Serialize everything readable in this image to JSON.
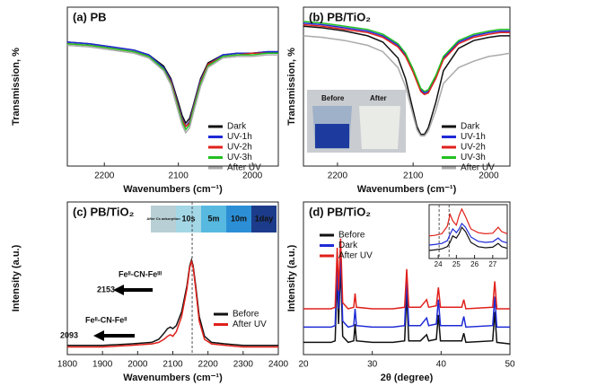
{
  "chart_data": [
    {
      "type": "line",
      "title": "(a) PB",
      "xlabel": "Wavenumbers (cm⁻¹)",
      "ylabel": "Transmission, %",
      "x": [
        2250,
        2220,
        2190,
        2160,
        2140,
        2120,
        2110,
        2100,
        2095,
        2090,
        2085,
        2080,
        2070,
        2060,
        2040,
        2020,
        2000,
        1980,
        1965
      ],
      "xlim": [
        2250,
        1965
      ],
      "xticks": [
        2200,
        2100,
        2000
      ],
      "ylim": [
        0,
        100
      ],
      "legend": "lower right",
      "series": [
        {
          "name": "Dark",
          "color": "#111111",
          "values": [
            78,
            77,
            75,
            73,
            70,
            63,
            55,
            40,
            32,
            27,
            30,
            38,
            55,
            65,
            70,
            71,
            71,
            72,
            72
          ]
        },
        {
          "name": "UV-1h",
          "color": "#1f2bd6",
          "values": [
            78,
            77,
            75,
            73,
            70,
            62,
            54,
            38,
            30,
            25,
            28,
            37,
            54,
            64,
            70,
            71,
            71,
            72,
            72
          ]
        },
        {
          "name": "UV-2h",
          "color": "#e0201b",
          "values": [
            77,
            76,
            74,
            72,
            69,
            61,
            53,
            37,
            29,
            25,
            27,
            36,
            53,
            64,
            69,
            70,
            71,
            71,
            71
          ]
        },
        {
          "name": "UV-3h",
          "color": "#22c022",
          "values": [
            77,
            76,
            74,
            72,
            69,
            61,
            52,
            36,
            28,
            23,
            26,
            35,
            52,
            63,
            69,
            70,
            70,
            71,
            71
          ]
        },
        {
          "name": "After UV",
          "color": "#aaaaaa",
          "values": [
            76,
            75,
            73,
            71,
            68,
            60,
            51,
            34,
            26,
            21,
            24,
            33,
            50,
            62,
            68,
            69,
            69,
            70,
            70
          ]
        }
      ]
    },
    {
      "type": "line",
      "title": "(b) PB/TiO₂",
      "xlabel": "Wavenumbers (cm⁻¹)",
      "ylabel": "Transmission, %",
      "x": [
        2245,
        2220,
        2190,
        2160,
        2140,
        2120,
        2110,
        2100,
        2095,
        2090,
        2085,
        2080,
        2070,
        2060,
        2040,
        2020,
        2000,
        1985,
        1972
      ],
      "xlim": [
        2245,
        1972
      ],
      "xticks": [
        2200,
        2100,
        2000
      ],
      "ylim": [
        0,
        100
      ],
      "legend": "lower right",
      "photo_labels": [
        "Before",
        "After"
      ],
      "series": [
        {
          "name": "Dark",
          "color": "#111111",
          "values": [
            88,
            87,
            85,
            82,
            78,
            68,
            55,
            35,
            25,
            20,
            20,
            24,
            40,
            60,
            74,
            79,
            81,
            82,
            82
          ]
        },
        {
          "name": "UV-1h",
          "color": "#1f2bd6",
          "values": [
            90,
            89,
            87,
            85,
            82,
            76,
            70,
            60,
            54,
            48,
            46,
            47,
            56,
            68,
            78,
            82,
            84,
            85,
            85
          ]
        },
        {
          "name": "UV-2h",
          "color": "#e0201b",
          "values": [
            89,
            88,
            86,
            84,
            81,
            75,
            69,
            59,
            53,
            47,
            45,
            46,
            55,
            67,
            77,
            81,
            83,
            84,
            84
          ]
        },
        {
          "name": "UV-3h",
          "color": "#22c022",
          "values": [
            91,
            90,
            88,
            86,
            83,
            77,
            71,
            61,
            55,
            49,
            47,
            48,
            57,
            69,
            79,
            83,
            85,
            86,
            86
          ]
        },
        {
          "name": "After UV",
          "color": "#aaaaaa",
          "values": [
            82,
            81,
            79,
            76,
            72,
            62,
            50,
            32,
            23,
            19,
            19,
            22,
            35,
            52,
            62,
            66,
            69,
            70,
            71
          ]
        }
      ]
    },
    {
      "type": "line",
      "title": "(c) PB/TiO₂",
      "xlabel": "Wavenumbers (cm⁻¹)",
      "ylabel": "Intensity (a.u.)",
      "x": [
        1800,
        1900,
        1980,
        2040,
        2060,
        2075,
        2085,
        2093,
        2100,
        2110,
        2125,
        2140,
        2148,
        2153,
        2158,
        2165,
        2175,
        2190,
        2210,
        2250,
        2300,
        2400
      ],
      "xlim": [
        1800,
        2400
      ],
      "xticks": [
        1800,
        1900,
        2000,
        2100,
        2200,
        2300,
        2400
      ],
      "ylim": [
        0,
        100
      ],
      "legend": "lower right",
      "ref_lines": [
        2155
      ],
      "annotations": [
        "Feᴵᴵ-CN-Feᴵᴵᴵ",
        "2153",
        "Feᴵᴵ-CN-Feᴵᴵ",
        "2093"
      ],
      "inset_labels": [
        "After Cs adsorption",
        "10s",
        "5m",
        "10m",
        "1day"
      ],
      "series": [
        {
          "name": "Before",
          "color": "#111111",
          "values": [
            6,
            6,
            7,
            8,
            10,
            14,
            17,
            18,
            17,
            19,
            28,
            45,
            58,
            62,
            58,
            45,
            25,
            12,
            8,
            7,
            6,
            6
          ]
        },
        {
          "name": "After UV",
          "color": "#e0201b",
          "values": [
            5,
            5,
            6,
            7,
            8,
            10,
            12,
            13,
            12,
            15,
            25,
            43,
            57,
            61,
            57,
            43,
            22,
            10,
            7,
            6,
            5,
            5
          ]
        }
      ]
    },
    {
      "type": "line",
      "title": "(d) PB/TiO₂",
      "xlabel": "2θ (degree)",
      "ylabel": "Intensity (a.u.)",
      "x": [
        20,
        22,
        24,
        24.6,
        24.9,
        25.1,
        25.4,
        25.7,
        26.5,
        27.3,
        27.5,
        27.7,
        30,
        33,
        34.7,
        35,
        35.3,
        37,
        37.9,
        38.2,
        39.3,
        39.6,
        39.9,
        43,
        43.3,
        43.6,
        47.5,
        47.8,
        48.1,
        50
      ],
      "xlim": [
        20,
        50
      ],
      "xticks": [
        20,
        30,
        40,
        50
      ],
      "ylim": [
        0,
        100
      ],
      "legend": "upper left",
      "series": [
        {
          "name": "Before",
          "color": "#111111",
          "values": [
            8,
            8,
            8,
            9,
            52,
            20,
            58,
            12,
            8,
            9,
            20,
            9,
            8,
            8,
            9,
            40,
            9,
            9,
            13,
            9,
            10,
            26,
            9,
            9,
            14,
            8,
            9,
            28,
            8,
            7
          ]
        },
        {
          "name": "Dark",
          "color": "#1f2bd6",
          "values": [
            18,
            18,
            18,
            19,
            60,
            30,
            68,
            22,
            18,
            19,
            30,
            19,
            18,
            18,
            19,
            50,
            19,
            19,
            24,
            19,
            20,
            36,
            19,
            19,
            25,
            18,
            19,
            38,
            18,
            18
          ]
        },
        {
          "name": "After UV",
          "color": "#e0201b",
          "values": [
            30,
            30,
            30,
            31,
            70,
            42,
            76,
            34,
            30,
            31,
            40,
            31,
            30,
            30,
            31,
            56,
            31,
            31,
            36,
            31,
            32,
            44,
            31,
            31,
            36,
            30,
            31,
            48,
            30,
            30
          ]
        }
      ]
    },
    {
      "type": "line",
      "x": [
        23.5,
        23.8,
        24.2,
        24.5,
        24.65,
        24.8,
        25.0,
        25.15,
        25.3,
        25.5,
        25.8,
        26.2,
        26.6,
        27.0,
        27.3,
        27.5,
        27.8
      ],
      "xlim": [
        23.5,
        27.8
      ],
      "xticks": [
        24,
        25,
        26,
        27
      ],
      "ylim": [
        0,
        100
      ],
      "ref_lines": [
        24.05,
        24.6
      ],
      "series": [
        {
          "color": "#111111",
          "values": [
            15,
            16,
            18,
            22,
            30,
            42,
            38,
            46,
            58,
            50,
            30,
            22,
            20,
            21,
            28,
            22,
            19
          ]
        },
        {
          "color": "#1f2bd6",
          "values": [
            25,
            26,
            28,
            33,
            45,
            55,
            48,
            55,
            65,
            58,
            40,
            32,
            30,
            31,
            38,
            32,
            29
          ]
        },
        {
          "color": "#e0201b",
          "values": [
            42,
            43,
            46,
            60,
            82,
            70,
            62,
            80,
            92,
            78,
            55,
            48,
            46,
            47,
            58,
            50,
            46
          ]
        }
      ]
    }
  ]
}
